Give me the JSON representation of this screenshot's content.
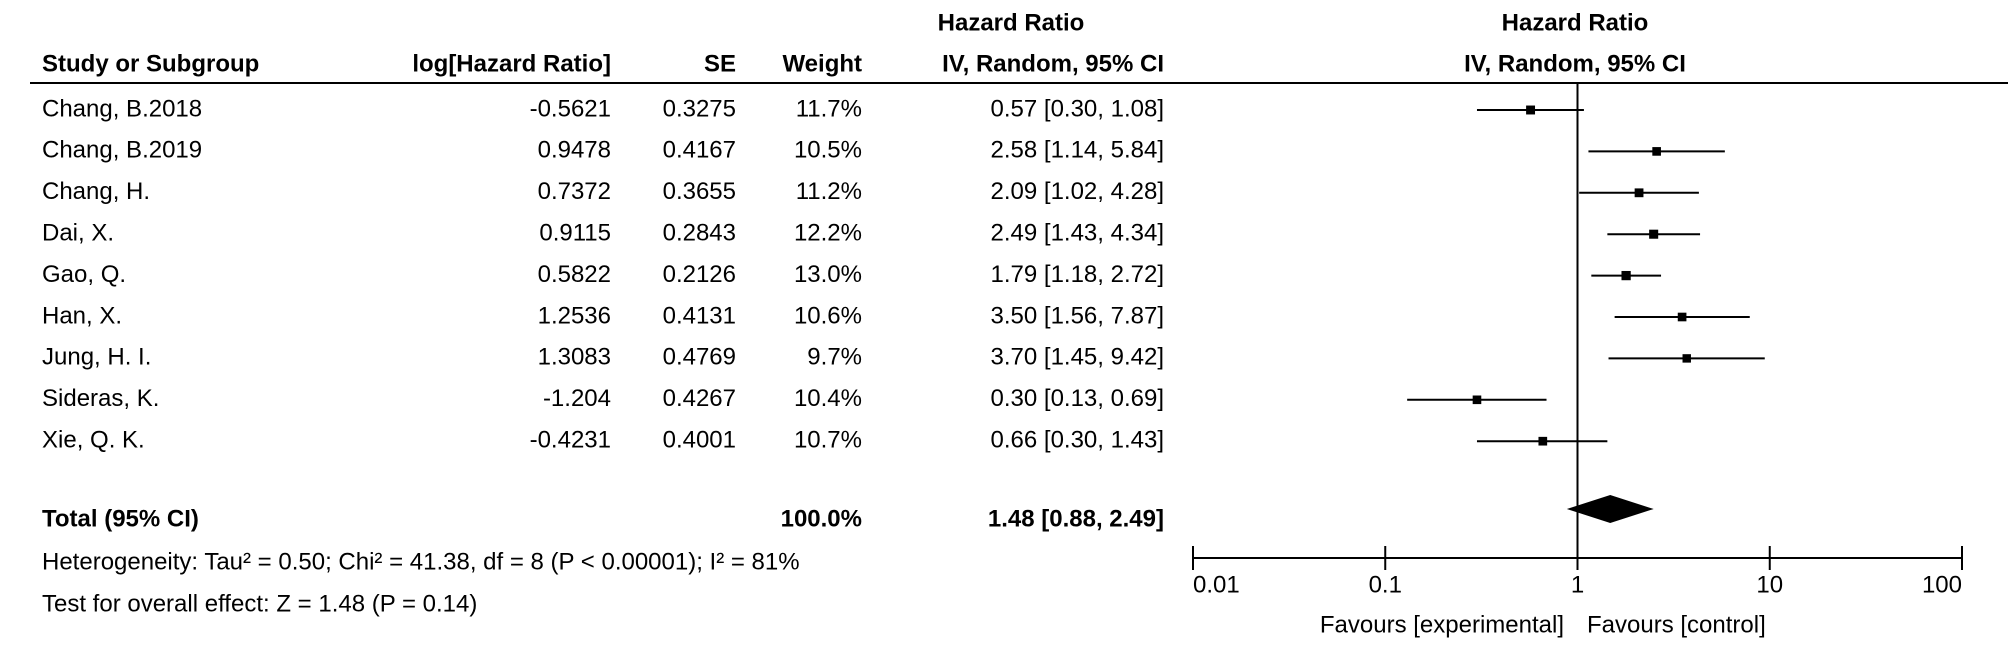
{
  "chart_data": {
    "type": "forest",
    "title": "Hazard Ratio",
    "subtitle": "IV, Random, 95% CI",
    "columns": [
      "Study or Subgroup",
      "log[Hazard Ratio]",
      "SE",
      "Weight"
    ],
    "categories": [
      "Chang, B.2018",
      "Chang, B.2019",
      "Chang, H.",
      "Dai, X.",
      "Gao, Q.",
      "Han, X.",
      "Jung, H. I.",
      "Sideras, K.",
      "Xie, Q. K."
    ],
    "log_hr": [
      -0.5621,
      0.9478,
      0.7372,
      0.9115,
      0.5822,
      1.2536,
      1.3083,
      -1.204,
      -0.4231
    ],
    "se": [
      0.3275,
      0.4167,
      0.3655,
      0.2843,
      0.2126,
      0.4131,
      0.4769,
      0.4267,
      0.4001
    ],
    "weights": [
      11.7,
      10.5,
      11.2,
      12.2,
      13.0,
      10.6,
      9.7,
      10.4,
      10.7
    ],
    "weight_labels": [
      "11.7%",
      "10.5%",
      "11.2%",
      "12.2%",
      "13.0%",
      "10.6%",
      "9.7%",
      "10.4%",
      "10.7%"
    ],
    "values": [
      0.57,
      2.58,
      2.09,
      2.49,
      1.79,
      3.5,
      3.7,
      0.3,
      0.66
    ],
    "lower": [
      0.3,
      1.14,
      1.02,
      1.43,
      1.18,
      1.56,
      1.45,
      0.13,
      0.3
    ],
    "upper": [
      1.08,
      5.84,
      4.28,
      4.34,
      2.72,
      7.87,
      9.42,
      0.69,
      1.43
    ],
    "value_labels": [
      "0.57 [0.30, 1.08]",
      "2.58 [1.14, 5.84]",
      "2.09 [1.02, 4.28]",
      "2.49 [1.43, 4.34]",
      "1.79 [1.18, 2.72]",
      "3.50 [1.56, 7.87]",
      "3.70 [1.45, 9.42]",
      "0.30 [0.13, 0.69]",
      "0.66 [0.30, 1.43]"
    ],
    "total": {
      "label": "Total (95% CI)",
      "weight": 100.0,
      "weight_label": "100.0%",
      "value": 1.48,
      "lower": 0.88,
      "upper": 2.49,
      "value_label": "1.48 [0.88, 2.49]"
    },
    "heterogeneity": "Heterogeneity: Tau² = 0.50; Chi² = 41.38, df = 8 (P < 0.00001); I² = 81%",
    "overall_effect": "Test for overall effect: Z = 1.48 (P = 0.14)",
    "xlim": [
      0.01,
      100
    ],
    "xticks": [
      0.01,
      0.1,
      1,
      10,
      100
    ],
    "log_scale": true,
    "x_labels": [
      "Favours [experimental]",
      "Favours [control]"
    ],
    "color": "#000000"
  }
}
